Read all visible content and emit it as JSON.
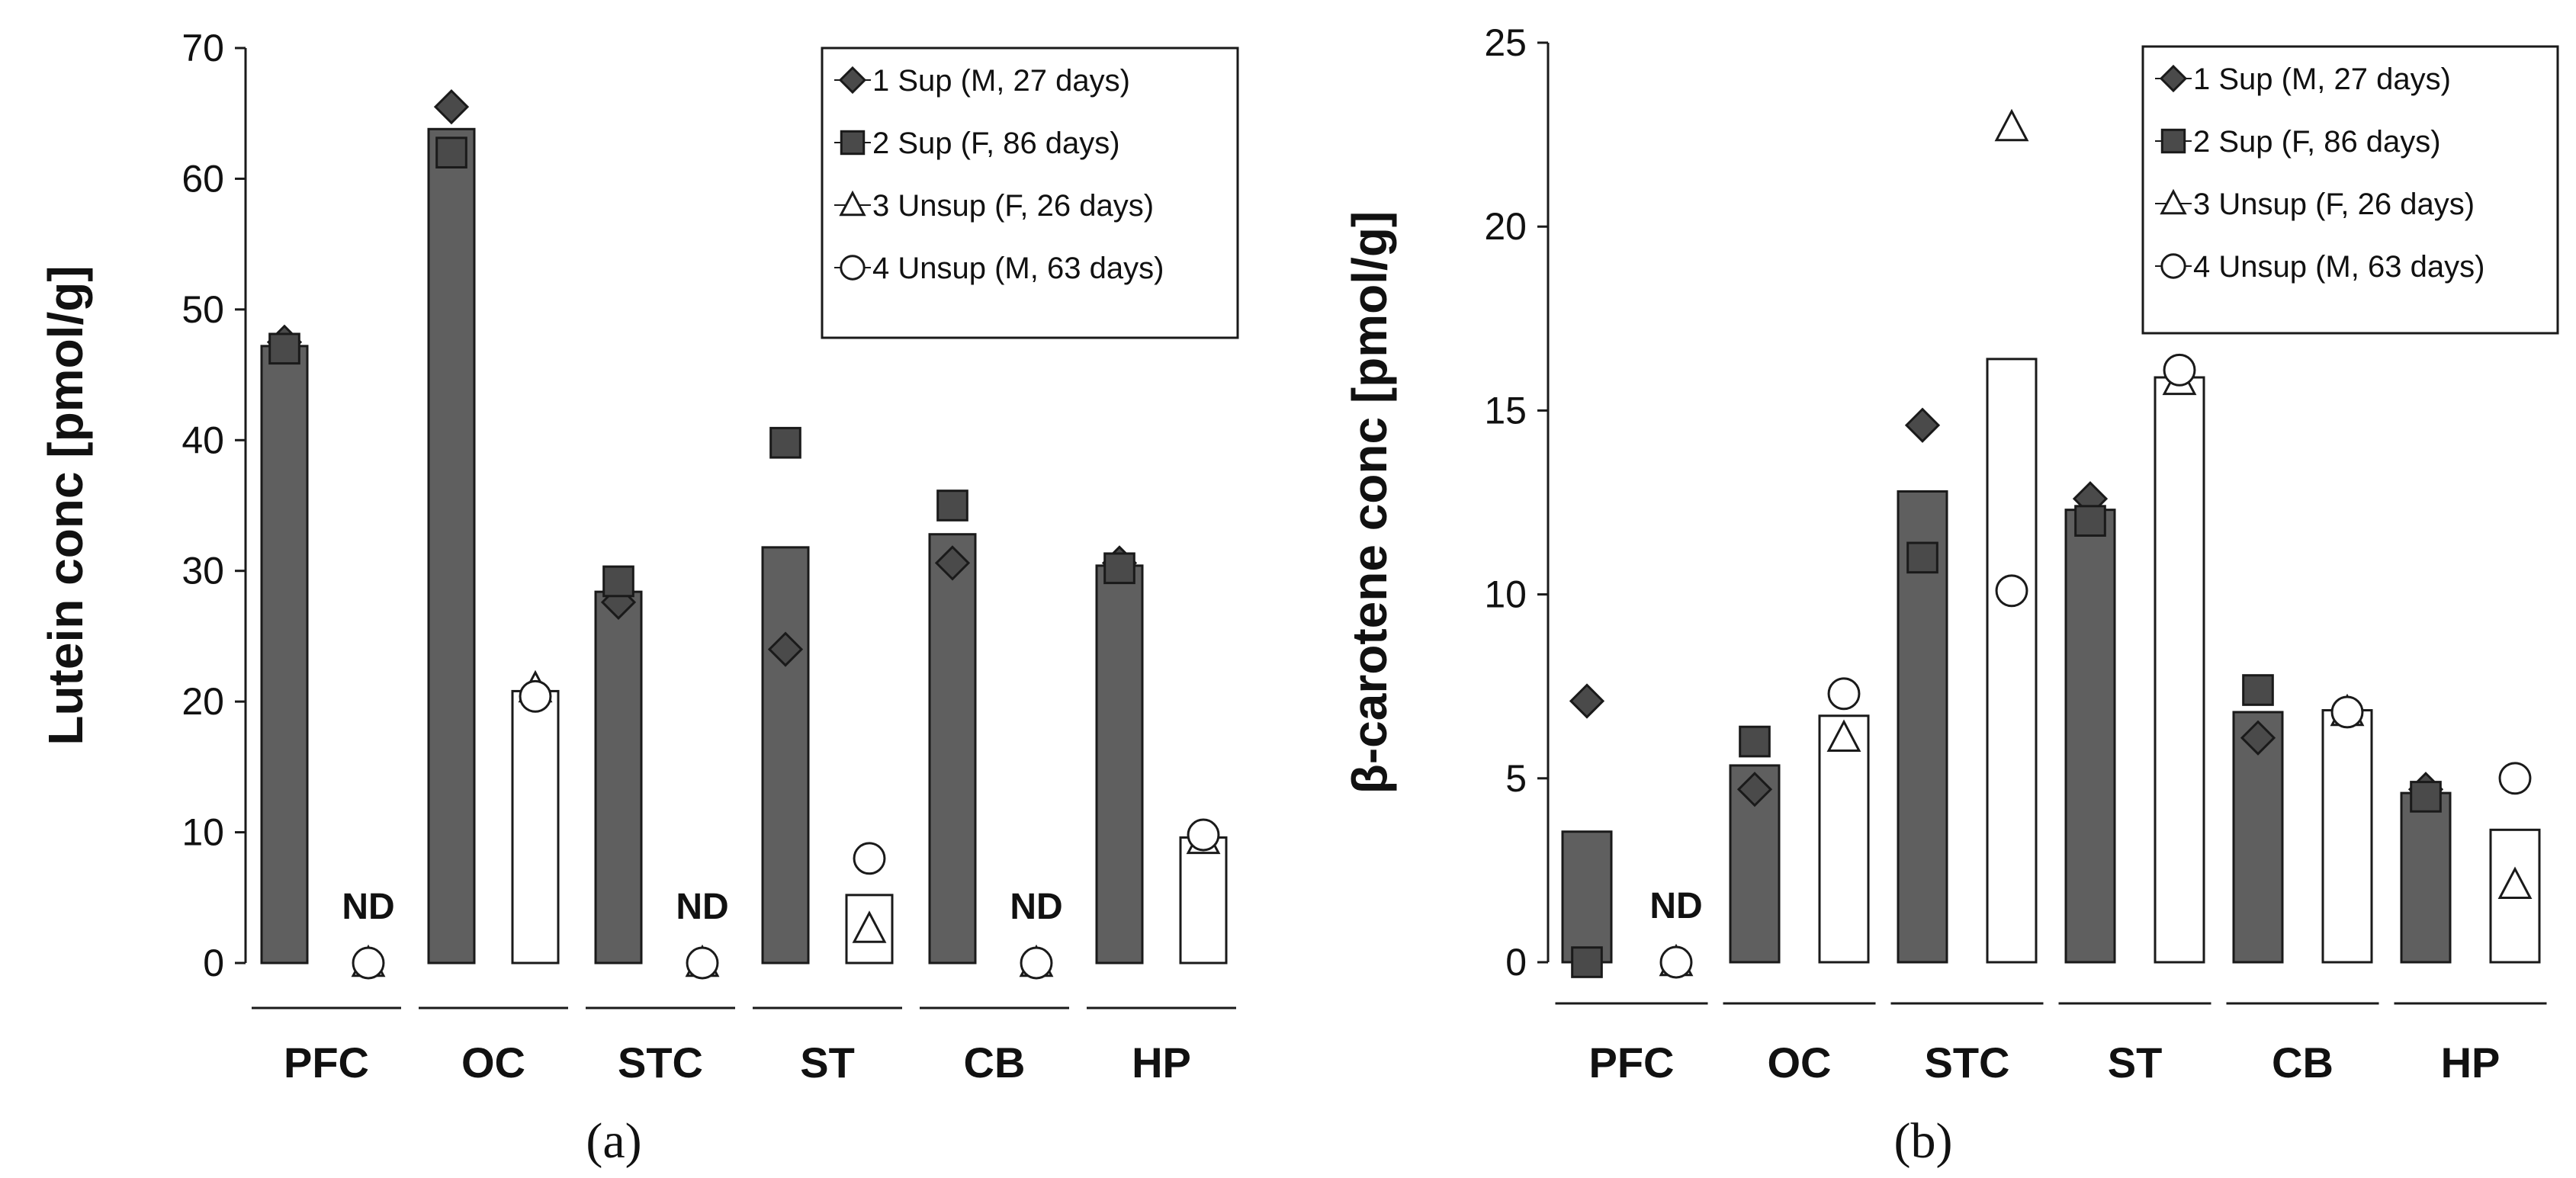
{
  "colors": {
    "supervised_bar": "#5f5f5f",
    "unsupervised_bar": "#ffffff",
    "outline": "#1a1a1a",
    "marker_dark": "#4a4a4a"
  },
  "chart_data": [
    {
      "panel_label": "(a)",
      "type": "bar",
      "title": "",
      "ylabel": "Lutein conc [pmol/g]",
      "ylim": [
        0,
        70
      ],
      "yticks": [
        "0",
        "10",
        "20",
        "30",
        "40",
        "50",
        "60",
        "70"
      ],
      "categories": [
        "PFC",
        "OC",
        "STC",
        "ST",
        "CB",
        "HP"
      ],
      "nd_label": "ND",
      "series": [
        {
          "name": "Sup",
          "values": [
            47.2,
            63.8,
            28.4,
            31.8,
            32.8,
            30.4
          ]
        },
        {
          "name": "Unsup",
          "values": [
            0,
            20.8,
            0,
            5.2,
            0,
            9.6
          ]
        }
      ],
      "not_detected": [
        {
          "category": "PFC",
          "group": "Unsup"
        },
        {
          "category": "STC",
          "group": "Unsup"
        },
        {
          "category": "CB",
          "group": "Unsup"
        }
      ],
      "individuals": [
        {
          "label": "1  Sup (M, 27 days)",
          "marker": "diamond",
          "group": "Sup",
          "values": [
            47.5,
            65.5,
            27.6,
            24.0,
            30.6,
            30.6
          ]
        },
        {
          "label": "2  Sup (F,  86 days)",
          "marker": "square",
          "group": "Sup",
          "values": [
            47.0,
            62.0,
            29.2,
            39.8,
            35.0,
            30.2
          ]
        },
        {
          "label": "3  Unsup (F,  26 days)",
          "marker": "triangle",
          "group": "Unsup",
          "values": [
            0,
            21.0,
            0,
            2.6,
            0,
            9.4
          ]
        },
        {
          "label": "4  Unsup (M, 63 days)",
          "marker": "circle",
          "group": "Unsup",
          "values": [
            0,
            20.4,
            0,
            8.0,
            0,
            9.8
          ]
        }
      ],
      "legend_position": "top-right"
    },
    {
      "panel_label": "(b)",
      "type": "bar",
      "title": "",
      "ylabel": "β-carotene conc [pmol/g]",
      "ylim": [
        0,
        25
      ],
      "yticks": [
        "0",
        "5",
        "10",
        "15",
        "20",
        "25"
      ],
      "categories": [
        "PFC",
        "OC",
        "STC",
        "ST",
        "CB",
        "HP"
      ],
      "nd_label": "ND",
      "series": [
        {
          "name": "Sup",
          "values": [
            3.55,
            5.35,
            12.8,
            12.3,
            6.8,
            4.6
          ]
        },
        {
          "name": "Unsup",
          "values": [
            0,
            6.7,
            16.4,
            15.9,
            6.85,
            3.6
          ]
        }
      ],
      "not_detected": [
        {
          "category": "PFC",
          "group": "Unsup"
        }
      ],
      "individuals": [
        {
          "label": "1  Sup (M, 27 days)",
          "marker": "diamond",
          "group": "Sup",
          "values": [
            7.1,
            4.7,
            14.6,
            12.6,
            6.1,
            4.7
          ]
        },
        {
          "label": "2  Sup (F,  86 days)",
          "marker": "square",
          "group": "Sup",
          "values": [
            0.0,
            6.0,
            11.0,
            12.0,
            7.4,
            4.5
          ]
        },
        {
          "label": "3  Unsup (F,  26 days)",
          "marker": "triangle",
          "group": "Unsup",
          "values": [
            0,
            6.1,
            22.7,
            15.8,
            6.8,
            2.1
          ]
        },
        {
          "label": "4  Unsup (M, 63 days)",
          "marker": "circle",
          "group": "Unsup",
          "values": [
            0,
            7.3,
            10.1,
            16.1,
            6.8,
            5.0
          ]
        }
      ],
      "legend_position": "top-right"
    }
  ]
}
